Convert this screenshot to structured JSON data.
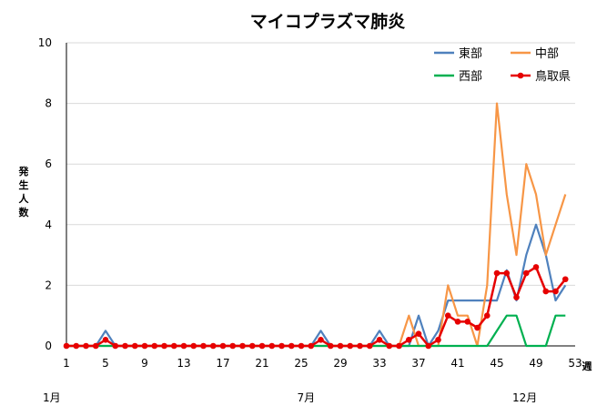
{
  "chart_data": {
    "type": "line",
    "title": "マイコプラズマ肺炎",
    "ylabel": "発生人数",
    "xlabel": "週",
    "ylim": [
      0,
      10
    ],
    "yticks": [
      0,
      2,
      4,
      6,
      8,
      10
    ],
    "xlim": [
      1,
      53
    ],
    "xticks": [
      1,
      5,
      9,
      13,
      17,
      21,
      25,
      29,
      33,
      37,
      41,
      45,
      49,
      53
    ],
    "months": [
      {
        "label": "1月",
        "week": 1
      },
      {
        "label": "7月",
        "week": 27
      },
      {
        "label": "12月",
        "week": 49
      }
    ],
    "grid": true,
    "legend_position": "top-right",
    "x": [
      1,
      2,
      3,
      4,
      5,
      6,
      7,
      8,
      9,
      10,
      11,
      12,
      13,
      14,
      15,
      16,
      17,
      18,
      19,
      20,
      21,
      22,
      23,
      24,
      25,
      26,
      27,
      28,
      29,
      30,
      31,
      32,
      33,
      34,
      35,
      36,
      37,
      38,
      39,
      40,
      41,
      42,
      43,
      44,
      45,
      46,
      47,
      48,
      49,
      50,
      51,
      52
    ],
    "series": [
      {
        "name": "東部",
        "color": "#4f81bd",
        "marker": false,
        "values": [
          0,
          0,
          0,
          0,
          0.5,
          0,
          0,
          0,
          0,
          0,
          0,
          0,
          0,
          0,
          0,
          0,
          0,
          0,
          0,
          0,
          0,
          0,
          0,
          0,
          0,
          0,
          0.5,
          0,
          0,
          0,
          0,
          0,
          0.5,
          0,
          0,
          0,
          1,
          0,
          0.5,
          1.5,
          1.5,
          1.5,
          1.5,
          1.5,
          1.5,
          2.5,
          1.5,
          3,
          4,
          3,
          1.5,
          2
        ]
      },
      {
        "name": "中部",
        "color": "#f79646",
        "marker": false,
        "values": [
          0,
          0,
          0,
          0,
          0,
          0,
          0,
          0,
          0,
          0,
          0,
          0,
          0,
          0,
          0,
          0,
          0,
          0,
          0,
          0,
          0,
          0,
          0,
          0,
          0,
          0,
          0,
          0,
          0,
          0,
          0,
          0,
          0,
          0,
          0,
          1,
          0,
          0,
          0,
          2,
          1,
          1,
          0,
          2,
          8,
          5,
          3,
          6,
          5,
          3,
          4,
          5
        ]
      },
      {
        "name": "西部",
        "color": "#00b050",
        "marker": false,
        "values": [
          0,
          0,
          0,
          0,
          0,
          0,
          0,
          0,
          0,
          0,
          0,
          0,
          0,
          0,
          0,
          0,
          0,
          0,
          0,
          0,
          0,
          0,
          0,
          0,
          0,
          0,
          0,
          0,
          0,
          0,
          0,
          0,
          0,
          0,
          0,
          0,
          0,
          0,
          0,
          0,
          0,
          0,
          0,
          0,
          0.5,
          1,
          1,
          0,
          0,
          0,
          1,
          1
        ]
      },
      {
        "name": "鳥取県",
        "color": "#e60000",
        "marker": true,
        "values": [
          0,
          0,
          0,
          0,
          0.2,
          0,
          0,
          0,
          0,
          0,
          0,
          0,
          0,
          0,
          0,
          0,
          0,
          0,
          0,
          0,
          0,
          0,
          0,
          0,
          0,
          0,
          0.2,
          0,
          0,
          0,
          0,
          0,
          0.2,
          0,
          0,
          0.2,
          0.4,
          0,
          0.2,
          1,
          0.8,
          0.8,
          0.6,
          1,
          2.4,
          2.4,
          1.6,
          2.4,
          2.6,
          1.8,
          1.8,
          2.2
        ]
      }
    ]
  }
}
